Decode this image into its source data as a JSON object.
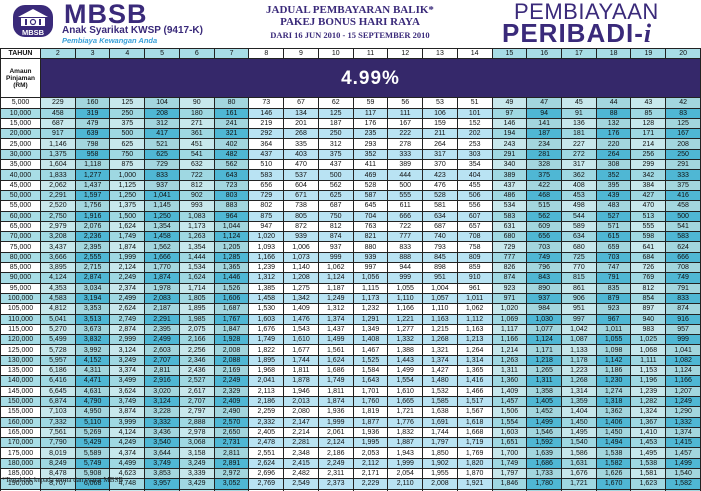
{
  "header": {
    "brand": "MBSB",
    "logo_text": "MBSB",
    "subsidiary": "Anak Syarikat KWSP (9417-K)",
    "tagline": "Pembiaya Kewangan Anda",
    "title_line1": "JADUAL PEMBAYARAN BALIK*",
    "title_line2": "PAKEJ BONUS HARI RAYA",
    "title_line3": "DARI 16 JUN 2010 - 15 SEPTEMBER 2010",
    "product_line1": "PEMBIAYAAN",
    "product_line2": "PERIBADI-",
    "product_suffix": "i"
  },
  "table": {
    "year_label": "TAHUN",
    "amount_label": "Amaun Pinjaman (RM)",
    "rate": "4.99%",
    "years": [
      "2",
      "3",
      "4",
      "5",
      "6",
      "7",
      "8",
      "9",
      "10",
      "11",
      "12",
      "13",
      "14",
      "15",
      "16",
      "17",
      "18",
      "19",
      "20"
    ],
    "rows": [
      {
        "amount": "5,000",
        "values": [
          "229",
          "160",
          "125",
          "104",
          "90",
          "80",
          "73",
          "67",
          "62",
          "59",
          "56",
          "53",
          "51",
          "49",
          "47",
          "45",
          "44",
          "43",
          "42"
        ]
      },
      {
        "amount": "10,000",
        "values": [
          "458",
          "319",
          "250",
          "208",
          "180",
          "161",
          "146",
          "134",
          "125",
          "117",
          "111",
          "106",
          "101",
          "97",
          "94",
          "91",
          "88",
          "85",
          "83"
        ]
      },
      {
        "amount": "15,000",
        "values": [
          "687",
          "479",
          "375",
          "312",
          "271",
          "241",
          "219",
          "201",
          "187",
          "176",
          "167",
          "159",
          "152",
          "146",
          "141",
          "136",
          "132",
          "128",
          "125"
        ]
      },
      {
        "amount": "20,000",
        "values": [
          "917",
          "639",
          "500",
          "417",
          "361",
          "321",
          "292",
          "268",
          "250",
          "235",
          "222",
          "211",
          "202",
          "194",
          "187",
          "181",
          "176",
          "171",
          "167"
        ]
      },
      {
        "amount": "25,000",
        "values": [
          "1,146",
          "798",
          "625",
          "521",
          "451",
          "402",
          "364",
          "335",
          "312",
          "293",
          "278",
          "264",
          "253",
          "243",
          "234",
          "227",
          "220",
          "214",
          "208"
        ]
      },
      {
        "amount": "30,000",
        "values": [
          "1,375",
          "958",
          "750",
          "625",
          "541",
          "482",
          "437",
          "403",
          "375",
          "352",
          "333",
          "317",
          "303",
          "291",
          "281",
          "272",
          "264",
          "256",
          "250"
        ]
      },
      {
        "amount": "35,000",
        "values": [
          "1,604",
          "1,118",
          "875",
          "729",
          "632",
          "562",
          "510",
          "470",
          "437",
          "411",
          "389",
          "370",
          "354",
          "340",
          "328",
          "317",
          "308",
          "299",
          "291"
        ]
      },
      {
        "amount": "40,000",
        "values": [
          "1,833",
          "1,277",
          "1,000",
          "833",
          "722",
          "643",
          "583",
          "537",
          "500",
          "469",
          "444",
          "423",
          "404",
          "389",
          "375",
          "362",
          "352",
          "342",
          "333"
        ]
      },
      {
        "amount": "45,000",
        "values": [
          "2,062",
          "1,437",
          "1,125",
          "937",
          "812",
          "723",
          "656",
          "604",
          "562",
          "528",
          "500",
          "476",
          "455",
          "437",
          "422",
          "408",
          "395",
          "384",
          "375"
        ]
      },
      {
        "amount": "50,000",
        "values": [
          "2,291",
          "1,597",
          "1,250",
          "1,041",
          "902",
          "803",
          "729",
          "671",
          "625",
          "587",
          "555",
          "528",
          "506",
          "486",
          "468",
          "453",
          "439",
          "427",
          "416"
        ]
      },
      {
        "amount": "55,000",
        "values": [
          "2,520",
          "1,756",
          "1,375",
          "1,145",
          "993",
          "883",
          "802",
          "738",
          "687",
          "645",
          "611",
          "581",
          "556",
          "534",
          "515",
          "498",
          "483",
          "470",
          "458"
        ]
      },
      {
        "amount": "60,000",
        "values": [
          "2,750",
          "1,916",
          "1,500",
          "1,250",
          "1,083",
          "964",
          "875",
          "805",
          "750",
          "704",
          "666",
          "634",
          "607",
          "583",
          "562",
          "544",
          "527",
          "513",
          "500"
        ]
      },
      {
        "amount": "65,000",
        "values": [
          "2,979",
          "2,076",
          "1,624",
          "1,354",
          "1,173",
          "1,044",
          "947",
          "872",
          "812",
          "763",
          "722",
          "687",
          "657",
          "631",
          "609",
          "589",
          "571",
          "555",
          "541"
        ]
      },
      {
        "amount": "70,000",
        "values": [
          "3,208",
          "2,236",
          "1,749",
          "1,458",
          "1,263",
          "1,124",
          "1,020",
          "939",
          "874",
          "821",
          "777",
          "740",
          "708",
          "680",
          "656",
          "634",
          "615",
          "598",
          "583"
        ]
      },
      {
        "amount": "75,000",
        "values": [
          "3,437",
          "2,395",
          "1,874",
          "1,562",
          "1,354",
          "1,205",
          "1,093",
          "1,006",
          "937",
          "880",
          "833",
          "793",
          "758",
          "729",
          "703",
          "680",
          "659",
          "641",
          "624"
        ]
      },
      {
        "amount": "80,000",
        "values": [
          "3,666",
          "2,555",
          "1,999",
          "1,666",
          "1,444",
          "1,285",
          "1,166",
          "1,073",
          "999",
          "939",
          "888",
          "845",
          "809",
          "777",
          "749",
          "725",
          "703",
          "684",
          "666"
        ]
      },
      {
        "amount": "85,000",
        "values": [
          "3,895",
          "2,715",
          "2,124",
          "1,770",
          "1,534",
          "1,365",
          "1,239",
          "1,140",
          "1,062",
          "997",
          "944",
          "898",
          "859",
          "826",
          "796",
          "770",
          "747",
          "726",
          "708"
        ]
      },
      {
        "amount": "90,000",
        "values": [
          "4,124",
          "2,874",
          "2,249",
          "1,874",
          "1,624",
          "1,446",
          "1,312",
          "1,208",
          "1,124",
          "1,056",
          "999",
          "951",
          "910",
          "874",
          "843",
          "815",
          "791",
          "769",
          "749"
        ]
      },
      {
        "amount": "95,000",
        "values": [
          "4,353",
          "3,034",
          "2,374",
          "1,978",
          "1,714",
          "1,526",
          "1,385",
          "1,275",
          "1,187",
          "1,115",
          "1,055",
          "1,004",
          "961",
          "923",
          "890",
          "861",
          "835",
          "812",
          "791"
        ]
      },
      {
        "amount": "100,000",
        "values": [
          "4,583",
          "3,194",
          "2,499",
          "2,083",
          "1,805",
          "1,606",
          "1,458",
          "1,342",
          "1,249",
          "1,173",
          "1,110",
          "1,057",
          "1,011",
          "971",
          "937",
          "906",
          "879",
          "854",
          "833"
        ]
      },
      {
        "amount": "105,000",
        "values": [
          "4,812",
          "3,353",
          "2,624",
          "2,187",
          "1,895",
          "1,687",
          "1,530",
          "1,409",
          "1,312",
          "1,232",
          "1,166",
          "1,110",
          "1,062",
          "1,020",
          "984",
          "951",
          "923",
          "897",
          "874"
        ]
      },
      {
        "amount": "110,000",
        "values": [
          "5,041",
          "3,513",
          "2,749",
          "2,291",
          "1,985",
          "1,767",
          "1,603",
          "1,476",
          "1,374",
          "1,291",
          "1,221",
          "1,163",
          "1,112",
          "1,069",
          "1,030",
          "997",
          "967",
          "940",
          "916"
        ]
      },
      {
        "amount": "115,000",
        "values": [
          "5,270",
          "3,673",
          "2,874",
          "2,395",
          "2,075",
          "1,847",
          "1,676",
          "1,543",
          "1,437",
          "1,349",
          "1,277",
          "1,215",
          "1,163",
          "1,117",
          "1,077",
          "1,042",
          "1,011",
          "983",
          "957"
        ]
      },
      {
        "amount": "120,000",
        "values": [
          "5,499",
          "3,832",
          "2,999",
          "2,499",
          "2,166",
          "1,928",
          "1,749",
          "1,610",
          "1,499",
          "1,408",
          "1,332",
          "1,268",
          "1,213",
          "1,166",
          "1,124",
          "1,087",
          "1,055",
          "1,025",
          "999"
        ]
      },
      {
        "amount": "125,000",
        "values": [
          "5,728",
          "3,992",
          "3,124",
          "2,603",
          "2,256",
          "2,008",
          "1,822",
          "1,677",
          "1,561",
          "1,467",
          "1,388",
          "1,321",
          "1,264",
          "1,214",
          "1,171",
          "1,133",
          "1,098",
          "1,068",
          "1,041"
        ]
      },
      {
        "amount": "130,000",
        "values": [
          "5,957",
          "4,152",
          "3,249",
          "2,707",
          "2,346",
          "2,088",
          "1,895",
          "1,744",
          "1,624",
          "1,525",
          "1,443",
          "1,374",
          "1,314",
          "1,263",
          "1,218",
          "1,178",
          "1,142",
          "1,111",
          "1,082"
        ]
      },
      {
        "amount": "135,000",
        "values": [
          "6,186",
          "4,311",
          "3,374",
          "2,811",
          "2,436",
          "2,169",
          "1,968",
          "1,811",
          "1,686",
          "1,584",
          "1,499",
          "1,427",
          "1,365",
          "1,311",
          "1,265",
          "1,223",
          "1,186",
          "1,153",
          "1,124"
        ]
      },
      {
        "amount": "140,000",
        "values": [
          "6,416",
          "4,471",
          "3,499",
          "2,916",
          "2,527",
          "2,249",
          "2,041",
          "1,878",
          "1,749",
          "1,643",
          "1,554",
          "1,480",
          "1,416",
          "1,360",
          "1,311",
          "1,268",
          "1,230",
          "1,196",
          "1,166"
        ]
      },
      {
        "amount": "145,000",
        "values": [
          "6,645",
          "4,631",
          "3,624",
          "3,020",
          "2,617",
          "2,329",
          "2,113",
          "1,946",
          "1,811",
          "1,701",
          "1,610",
          "1,532",
          "1,466",
          "1,409",
          "1,358",
          "1,314",
          "1,274",
          "1,239",
          "1,207"
        ]
      },
      {
        "amount": "150,000",
        "values": [
          "6,874",
          "4,790",
          "3,749",
          "3,124",
          "2,707",
          "2,409",
          "2,186",
          "2,013",
          "1,874",
          "1,760",
          "1,665",
          "1,585",
          "1,517",
          "1,457",
          "1,405",
          "1,359",
          "1,318",
          "1,282",
          "1,249"
        ]
      },
      {
        "amount": "155,000",
        "values": [
          "7,103",
          "4,950",
          "3,874",
          "3,228",
          "2,797",
          "2,490",
          "2,259",
          "2,080",
          "1,936",
          "1,819",
          "1,721",
          "1,638",
          "1,567",
          "1,506",
          "1,452",
          "1,404",
          "1,362",
          "1,324",
          "1,290"
        ]
      },
      {
        "amount": "160,000",
        "values": [
          "7,332",
          "5,110",
          "3,999",
          "3,332",
          "2,888",
          "2,570",
          "2,332",
          "2,147",
          "1,999",
          "1,877",
          "1,776",
          "1,691",
          "1,618",
          "1,554",
          "1,499",
          "1,450",
          "1,406",
          "1,367",
          "1,332"
        ]
      },
      {
        "amount": "165,000",
        "values": [
          "7,561",
          "5,269",
          "4,124",
          "3,436",
          "2,978",
          "2,650",
          "2,405",
          "2,214",
          "2,061",
          "1,936",
          "1,832",
          "1,744",
          "1,668",
          "1,603",
          "1,546",
          "1,495",
          "1,450",
          "1,410",
          "1,374"
        ]
      },
      {
        "amount": "170,000",
        "values": [
          "7,790",
          "5,429",
          "4,249",
          "3,540",
          "3,068",
          "2,731",
          "2,478",
          "2,281",
          "2,124",
          "1,995",
          "1,887",
          "1,797",
          "1,719",
          "1,651",
          "1,592",
          "1,540",
          "1,494",
          "1,453",
          "1,415"
        ]
      },
      {
        "amount": "175,000",
        "values": [
          "8,019",
          "5,589",
          "4,374",
          "3,644",
          "3,158",
          "2,811",
          "2,551",
          "2,348",
          "2,186",
          "2,053",
          "1,943",
          "1,850",
          "1,769",
          "1,700",
          "1,639",
          "1,586",
          "1,538",
          "1,495",
          "1,457"
        ]
      },
      {
        "amount": "180,000",
        "values": [
          "8,249",
          "5,749",
          "4,499",
          "3,749",
          "3,249",
          "2,891",
          "2,624",
          "2,415",
          "2,249",
          "2,112",
          "1,999",
          "1,902",
          "1,820",
          "1,749",
          "1,686",
          "1,631",
          "1,582",
          "1,538",
          "1,499"
        ]
      },
      {
        "amount": "185,000",
        "values": [
          "8,478",
          "5,908",
          "4,623",
          "3,853",
          "3,339",
          "2,972",
          "2,696",
          "2,482",
          "2,311",
          "2,171",
          "2,054",
          "1,955",
          "1,870",
          "1,797",
          "1,733",
          "1,676",
          "1,626",
          "1,581",
          "1,540"
        ]
      },
      {
        "amount": "190,000",
        "values": [
          "8,707",
          "6,068",
          "4,748",
          "3,957",
          "3,429",
          "3,052",
          "2,769",
          "2,549",
          "2,373",
          "2,229",
          "2,110",
          "2,008",
          "1,921",
          "1,846",
          "1,780",
          "1,721",
          "1,670",
          "1,623",
          "1,582"
        ]
      },
      {
        "amount": "195,000",
        "values": [
          "8,936",
          "6,228",
          "4,873",
          "4,061",
          "3,519",
          "3,132",
          "2,842",
          "2,616",
          "2,436",
          "2,288",
          "2,165",
          "2,061",
          "1,972",
          "1,894",
          "1,827",
          "1,767",
          "1,714",
          "1,666",
          "1,623"
        ]
      },
      {
        "amount": "200,000",
        "values": [
          "9,165",
          "6,387",
          "4,998",
          "4,165",
          "3,609",
          "3,213",
          "2,915",
          "2,684",
          "2,498",
          "2,347",
          "2,221",
          "2,114",
          "2,022",
          "1,943",
          "1,873",
          "1,812",
          "1,758",
          "1,709",
          "1,665"
        ]
      }
    ]
  },
  "footnote": "*Tertakluk kepada terma dan syarat MBSB",
  "colors": {
    "brand_purple": "#3a2a7a",
    "rate_band": "#35286a",
    "teal_light": "#a8dde6",
    "teal_dark": "#4fb7d4",
    "tagline_blue": "#3aa0d8"
  }
}
